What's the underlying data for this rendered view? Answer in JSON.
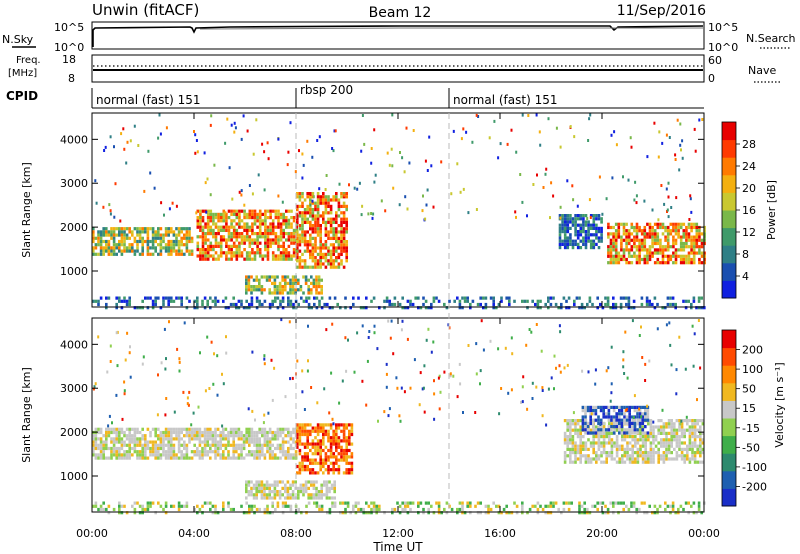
{
  "header": {
    "station": "Unwin (fitACF)",
    "beam": "Beam 12",
    "date": "11/Sep/2016"
  },
  "strips": {
    "nsky_label": "N.Sky",
    "nsky_ticks": [
      "10^5",
      "10^0"
    ],
    "nsearch_label": "N.Search",
    "freq_label_top": "Freq.",
    "freq_label_unit": "[MHz]",
    "freq_ticks": [
      "18",
      "8"
    ],
    "nave_ticks": [
      "60",
      "0"
    ],
    "nave_label": "Nave",
    "cpid_label": "CPID",
    "cpid_segments": [
      {
        "name": "normal (fast) 151",
        "start_hour": 0,
        "end_hour": 8
      },
      {
        "name": "rbsp 200",
        "start_hour": 8,
        "end_hour": 14
      },
      {
        "name": "normal (fast) 151",
        "start_hour": 14,
        "end_hour": 24
      }
    ]
  },
  "xaxis": {
    "label": "Time UT",
    "ticks": [
      "00:00",
      "04:00",
      "08:00",
      "12:00",
      "16:00",
      "20:00",
      "00:00"
    ]
  },
  "chart_data": [
    {
      "type": "heatmap",
      "panel": "power",
      "ylabel": "Slant Range [km]",
      "yticks": [
        1000,
        2000,
        3000,
        4000
      ],
      "ylim": [
        180,
        4600
      ],
      "xlim_hours": [
        0,
        24
      ],
      "colorbar": {
        "label": "Power [dB]",
        "ticks": [
          "4",
          "8",
          "12",
          "16",
          "20",
          "24",
          "28"
        ],
        "colors": [
          "#1020e0",
          "#1a4fb0",
          "#2f7f86",
          "#3f9a6a",
          "#7ab84a",
          "#c9c830",
          "#f4b010",
          "#ff7a00",
          "#ff3a00",
          "#e80000"
        ]
      },
      "regions": [
        {
          "t0": 0.0,
          "t1": 3.9,
          "r0": 1350,
          "r1": 2000,
          "level": "mid"
        },
        {
          "t0": 4.1,
          "t1": 8.0,
          "r0": 1300,
          "r1": 2400,
          "level": "high"
        },
        {
          "t0": 8.0,
          "t1": 10.0,
          "r0": 1100,
          "r1": 2800,
          "level": "high"
        },
        {
          "t0": 6.0,
          "t1": 9.0,
          "r0": 500,
          "r1": 900,
          "level": "mid"
        },
        {
          "t0": 18.3,
          "t1": 20.0,
          "r0": 1500,
          "r1": 2300,
          "level": "low"
        },
        {
          "t0": 20.2,
          "t1": 24.0,
          "r0": 1200,
          "r1": 2100,
          "level": "high"
        },
        {
          "t0": 0.0,
          "t1": 24.0,
          "r0": 180,
          "r1": 420,
          "level": "low"
        }
      ]
    },
    {
      "type": "heatmap",
      "panel": "velocity",
      "ylabel": "Slant Range [km]",
      "yticks": [
        1000,
        2000,
        3000,
        4000
      ],
      "ylim": [
        180,
        4600
      ],
      "xlim_hours": [
        0,
        24
      ],
      "colorbar": {
        "label": "Velocity [m s⁻¹]",
        "ticks": [
          "200",
          "100",
          "50",
          "15",
          "-15",
          "-50",
          "-100",
          "-200"
        ],
        "colors": [
          "#1a2fc8",
          "#1e5fb0",
          "#2d8a6e",
          "#3fae4a",
          "#90d050",
          "#c8c8c8",
          "#f0b820",
          "#ff8800",
          "#ff4a00",
          "#e80000"
        ]
      },
      "regions": [
        {
          "t0": 0.0,
          "t1": 8.0,
          "r0": 1400,
          "r1": 2100,
          "level": "gray"
        },
        {
          "t0": 8.0,
          "t1": 10.2,
          "r0": 1100,
          "r1": 2200,
          "level": "red"
        },
        {
          "t0": 6.0,
          "t1": 9.5,
          "r0": 500,
          "r1": 900,
          "level": "gray"
        },
        {
          "t0": 18.5,
          "t1": 24.0,
          "r0": 1300,
          "r1": 2300,
          "level": "gray"
        },
        {
          "t0": 19.2,
          "t1": 21.8,
          "r0": 2000,
          "r1": 2600,
          "level": "blue"
        },
        {
          "t0": 0.0,
          "t1": 24.0,
          "r0": 180,
          "r1": 420,
          "level": "green"
        }
      ]
    }
  ]
}
